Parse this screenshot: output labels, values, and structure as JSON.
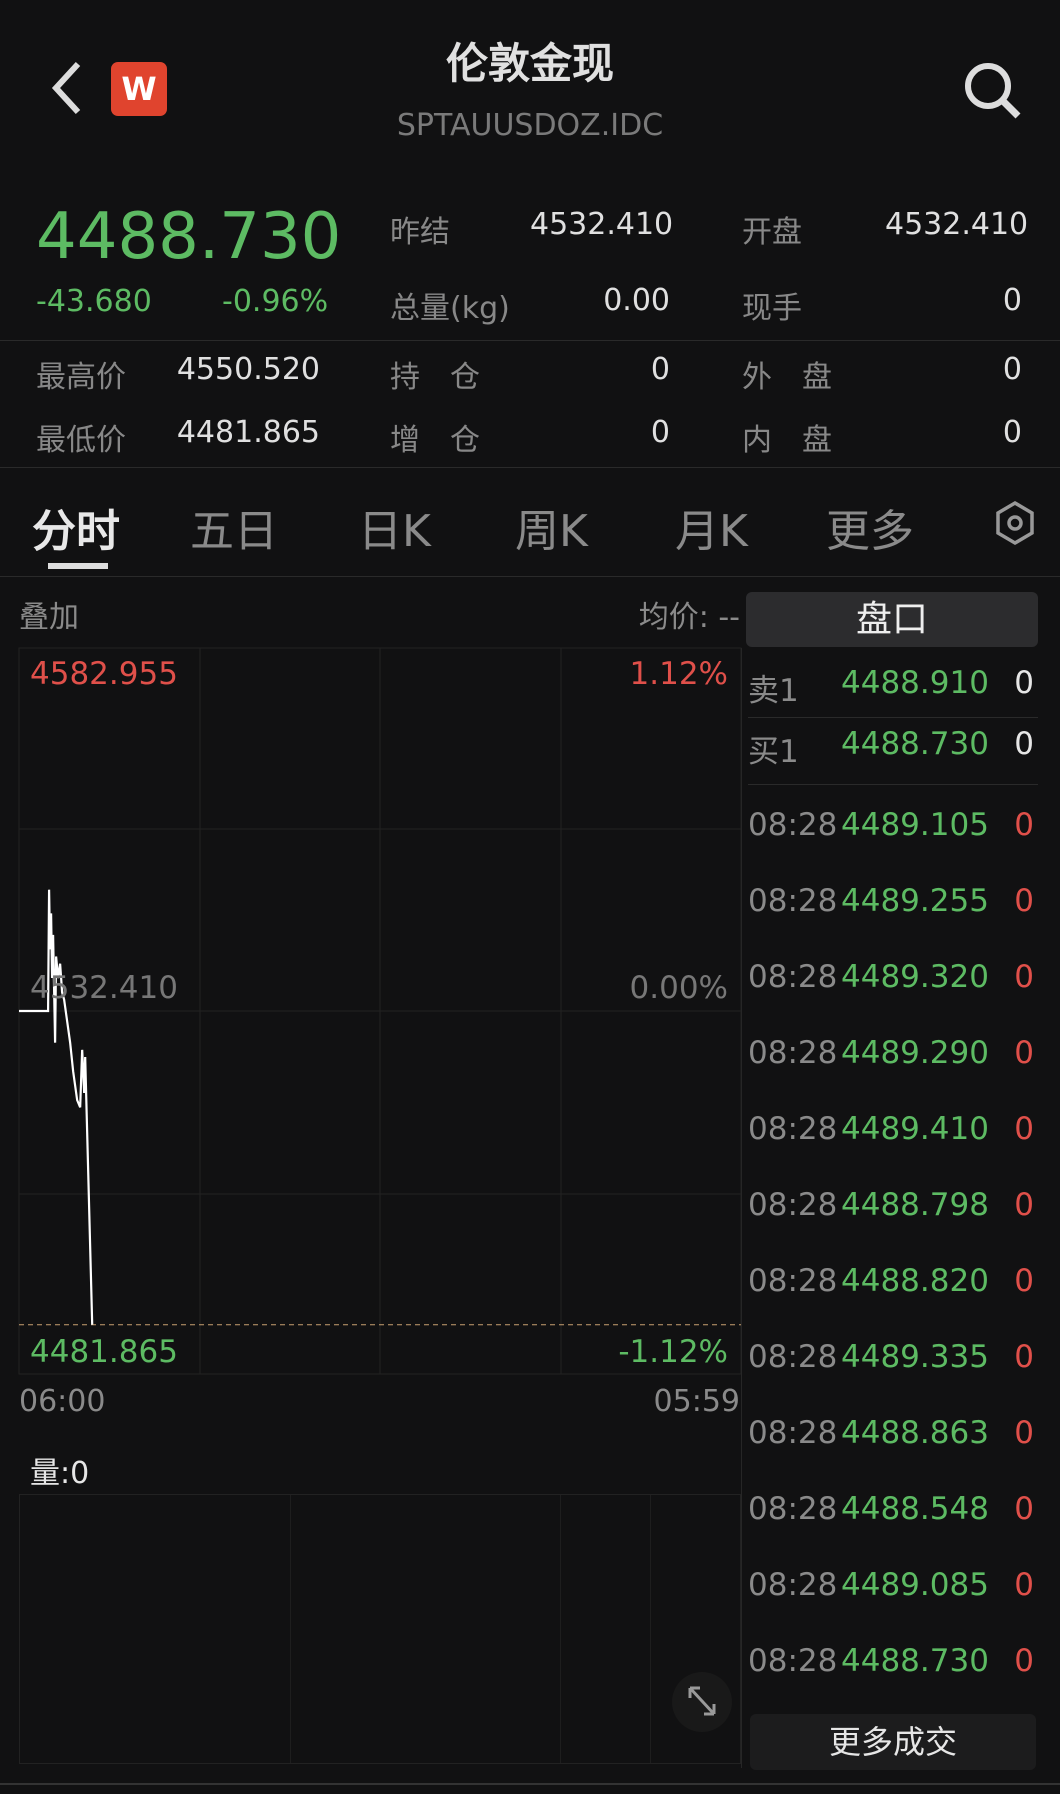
{
  "header": {
    "title": "伦敦金现",
    "code": "SPTAUUSDOZ.IDC",
    "logo": "W",
    "back_icon": "chevron-left-icon",
    "search_icon": "search-icon"
  },
  "quote": {
    "price": "4488.730",
    "change": "-43.680",
    "change_pct": "-0.96%",
    "stats": [
      {
        "label": "昨结",
        "value": "4532.410"
      },
      {
        "label": "开盘",
        "value": "4532.410"
      },
      {
        "label": "总量(kg)",
        "value": "0.00"
      },
      {
        "label": "现手",
        "value": "0"
      },
      {
        "label": "最高价",
        "value": "4550.520"
      },
      {
        "label": "持　仓",
        "value": "0"
      },
      {
        "label": "外　盘",
        "value": "0"
      },
      {
        "label": "最低价",
        "value": "4481.865"
      },
      {
        "label": "增　仓",
        "value": "0"
      },
      {
        "label": "内　盘",
        "value": "0"
      }
    ]
  },
  "tabs": [
    "分时",
    "五日",
    "日K",
    "周K",
    "月K",
    "更多"
  ],
  "settings_icon": "hexagon-gear-icon",
  "chart": {
    "overlay_label": "叠加",
    "avg_label": "均价: --",
    "vol_label": "量:0",
    "expand_icon": "expand-icon"
  },
  "chart_data": {
    "type": "line",
    "ylim": [
      4481.865,
      4582.955
    ],
    "y_ticks": [
      "4582.955",
      "4532.410",
      "4481.865"
    ],
    "pct_ticks": [
      "1.12%",
      "0.00%",
      "-1.12%"
    ],
    "x_ticks": [
      "06:00",
      "05:59"
    ],
    "reference": 4532.41,
    "current": 4488.73,
    "x": [
      "06:00",
      "06:58",
      "07:00",
      "07:02",
      "07:04",
      "07:06",
      "07:08",
      "07:12",
      "07:14",
      "07:18",
      "07:22",
      "07:26",
      "07:30",
      "07:36",
      "07:42",
      "07:48",
      "07:56",
      "08:02",
      "08:06",
      "08:10",
      "08:12",
      "08:26"
    ],
    "values": [
      4532.41,
      4532.41,
      4549.3,
      4541,
      4546,
      4537,
      4543,
      4528,
      4540,
      4537,
      4539,
      4535,
      4534,
      4531,
      4528,
      4524,
      4520,
      4519,
      4527,
      4521,
      4526,
      4488.73
    ]
  },
  "orderbook": {
    "title": "盘口",
    "asks": [
      {
        "label": "卖1",
        "price": "4488.910",
        "vol": "0"
      }
    ],
    "bids": [
      {
        "label": "买1",
        "price": "4488.730",
        "vol": "0"
      }
    ]
  },
  "trades": [
    {
      "t": "08:28",
      "p": "4489.105",
      "v": "0"
    },
    {
      "t": "08:28",
      "p": "4489.255",
      "v": "0"
    },
    {
      "t": "08:28",
      "p": "4489.320",
      "v": "0"
    },
    {
      "t": "08:28",
      "p": "4489.290",
      "v": "0"
    },
    {
      "t": "08:28",
      "p": "4489.410",
      "v": "0"
    },
    {
      "t": "08:28",
      "p": "4488.798",
      "v": "0"
    },
    {
      "t": "08:28",
      "p": "4488.820",
      "v": "0"
    },
    {
      "t": "08:28",
      "p": "4489.335",
      "v": "0"
    },
    {
      "t": "08:28",
      "p": "4488.863",
      "v": "0"
    },
    {
      "t": "08:28",
      "p": "4488.548",
      "v": "0"
    },
    {
      "t": "08:28",
      "p": "4489.085",
      "v": "0"
    },
    {
      "t": "08:28",
      "p": "4488.730",
      "v": "0"
    }
  ],
  "more_trades": "更多成交",
  "colors": {
    "up": "#e0504a",
    "down": "#5dbb63",
    "bg": "#111112"
  }
}
